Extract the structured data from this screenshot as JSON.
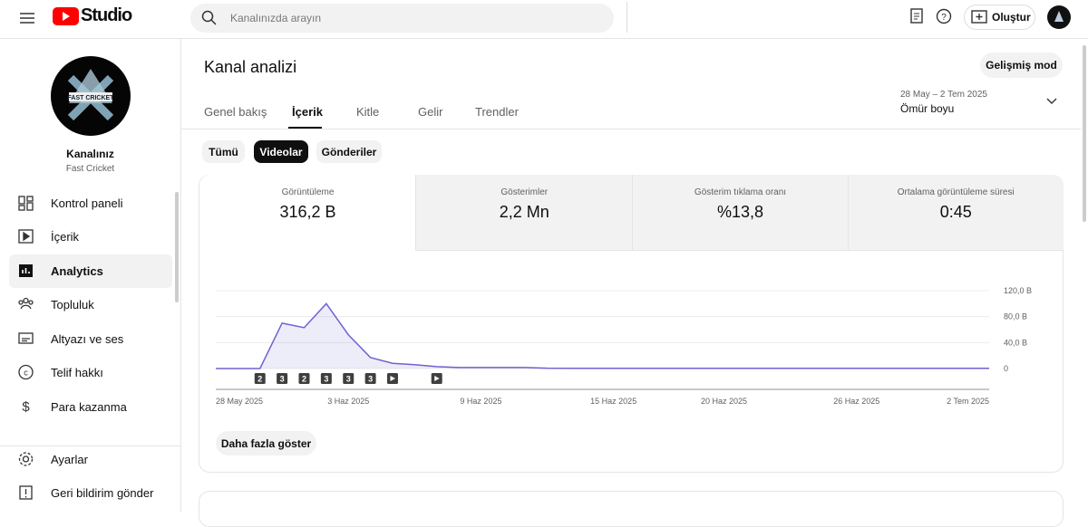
{
  "header": {
    "logo": "Studio",
    "search_placeholder": "Kanalınızda arayın",
    "create": "Oluştur"
  },
  "sidebar": {
    "avatar_text": "FAST CRICKET",
    "channel_name": "Kanalınız",
    "channel_handle": "Fast Cricket",
    "nav": [
      "Kontrol paneli",
      "İçerik",
      "Analytics",
      "Topluluk",
      "Altyazı ve ses",
      "Telif hakkı",
      "Para kazanma"
    ],
    "bottom": [
      "Ayarlar",
      "Geri bildirim gönder"
    ]
  },
  "main": {
    "title": "Kanal analizi",
    "advanced_button": "Gelişmiş mod",
    "tabs": [
      "Genel bakış",
      "İçerik",
      "Kitle",
      "Gelir",
      "Trendler"
    ],
    "date_range": "28 May – 2 Tem 2025",
    "period": "Ömür boyu",
    "chips": [
      "Tümü",
      "Videolar",
      "Gönderiler"
    ],
    "metrics": [
      {
        "label": "Görüntüleme",
        "value": "316,2 B"
      },
      {
        "label": "Gösterimler",
        "value": "2,2 Mn"
      },
      {
        "label": "Gösterim tıklama oranı",
        "value": "%13,8"
      },
      {
        "label": "Ortalama görüntüleme süresi",
        "value": "0:45"
      }
    ],
    "more_button": "Daha fazla göster"
  },
  "chart_data": {
    "type": "line",
    "color": "#6f62d1",
    "x": [
      "2025-05-28",
      "2025-05-29",
      "2025-05-30",
      "2025-05-31",
      "2025-06-01",
      "2025-06-02",
      "2025-06-03",
      "2025-06-04",
      "2025-06-05",
      "2025-06-06",
      "2025-06-07",
      "2025-06-08",
      "2025-06-09",
      "2025-06-10",
      "2025-06-11",
      "2025-06-12",
      "2025-06-13",
      "2025-06-14",
      "2025-06-15",
      "2025-06-16",
      "2025-06-17",
      "2025-06-18",
      "2025-06-19",
      "2025-06-20",
      "2025-06-21",
      "2025-06-22",
      "2025-06-23",
      "2025-06-24",
      "2025-06-25",
      "2025-06-26",
      "2025-06-27",
      "2025-06-28",
      "2025-06-29",
      "2025-06-30",
      "2025-07-01",
      "2025-07-02"
    ],
    "values": [
      0,
      0,
      0,
      70,
      63,
      100,
      52,
      17,
      8,
      6,
      3,
      1.5,
      1.5,
      1.5,
      1.5,
      0.5,
      0.3,
      0.3,
      0.3,
      0.3,
      0.3,
      0.3,
      0.3,
      0.3,
      0.3,
      0.3,
      0.3,
      0.3,
      0.3,
      0.3,
      0.3,
      0.3,
      0.3,
      0.3,
      0.3,
      0.3
    ],
    "ylim": [
      0,
      120
    ],
    "yticks": [
      0,
      {
        "value": 40,
        "label": "40,0 B"
      },
      {
        "value": 80,
        "label": "80,0 B"
      },
      {
        "value": 120,
        "label": "120,0 B"
      }
    ],
    "xticks": [
      {
        "value": "2025-05-28",
        "label": "28 May 2025"
      },
      {
        "value": "2025-06-03",
        "label": "3 Haz 2025"
      },
      {
        "value": "2025-06-09",
        "label": "9 Haz 2025"
      },
      {
        "value": "2025-06-15",
        "label": "15 Haz 2025"
      },
      {
        "value": "2025-06-20",
        "label": "20 Haz 2025"
      },
      {
        "value": "2025-06-26",
        "label": "26 Haz 2025"
      },
      {
        "value": "2025-07-02",
        "label": "2 Tem 2025"
      }
    ],
    "grid": true,
    "markers": [
      {
        "x": "2025-05-30",
        "count": 2
      },
      {
        "x": "2025-05-31",
        "count": 3
      },
      {
        "x": "2025-06-01",
        "count": 2
      },
      {
        "x": "2025-06-02",
        "count": 3
      },
      {
        "x": "2025-06-03",
        "count": 3
      },
      {
        "x": "2025-06-04",
        "count": 3
      },
      {
        "x": "2025-06-05",
        "count": null
      },
      {
        "x": "2025-06-07",
        "count": null
      }
    ]
  }
}
